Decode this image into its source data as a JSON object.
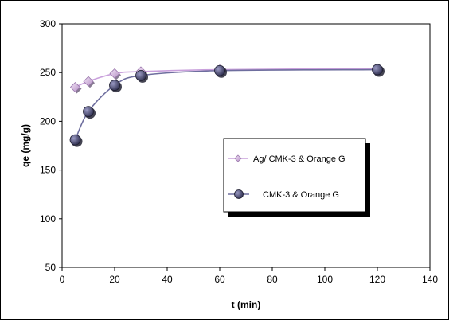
{
  "chart_data": {
    "type": "line",
    "xlabel": "t (min)",
    "ylabel": "qe (mg/g)",
    "xlim": [
      0,
      140
    ],
    "ylim": [
      50,
      300
    ],
    "xticks": [
      0,
      20,
      40,
      60,
      80,
      100,
      120,
      140
    ],
    "yticks": [
      50,
      100,
      150,
      200,
      250,
      300
    ],
    "grid": false,
    "legend_position": "center-right",
    "series": [
      {
        "name": "Ag/ CMK-3 & Orange G",
        "marker": "diamond",
        "color": "#c9a0dc",
        "marker_color": "#e8d0f0",
        "x": [
          5,
          10,
          20,
          30,
          60,
          120
        ],
        "y": [
          235,
          241,
          249,
          251,
          253,
          254
        ]
      },
      {
        "name": "CMK-3 & Orange G",
        "marker": "circle",
        "color": "#6e6e9e",
        "marker_color": "#4a4a70",
        "x": [
          5,
          10,
          20,
          30,
          60,
          120
        ],
        "y": [
          181,
          210,
          237,
          247,
          252,
          253
        ]
      }
    ]
  }
}
